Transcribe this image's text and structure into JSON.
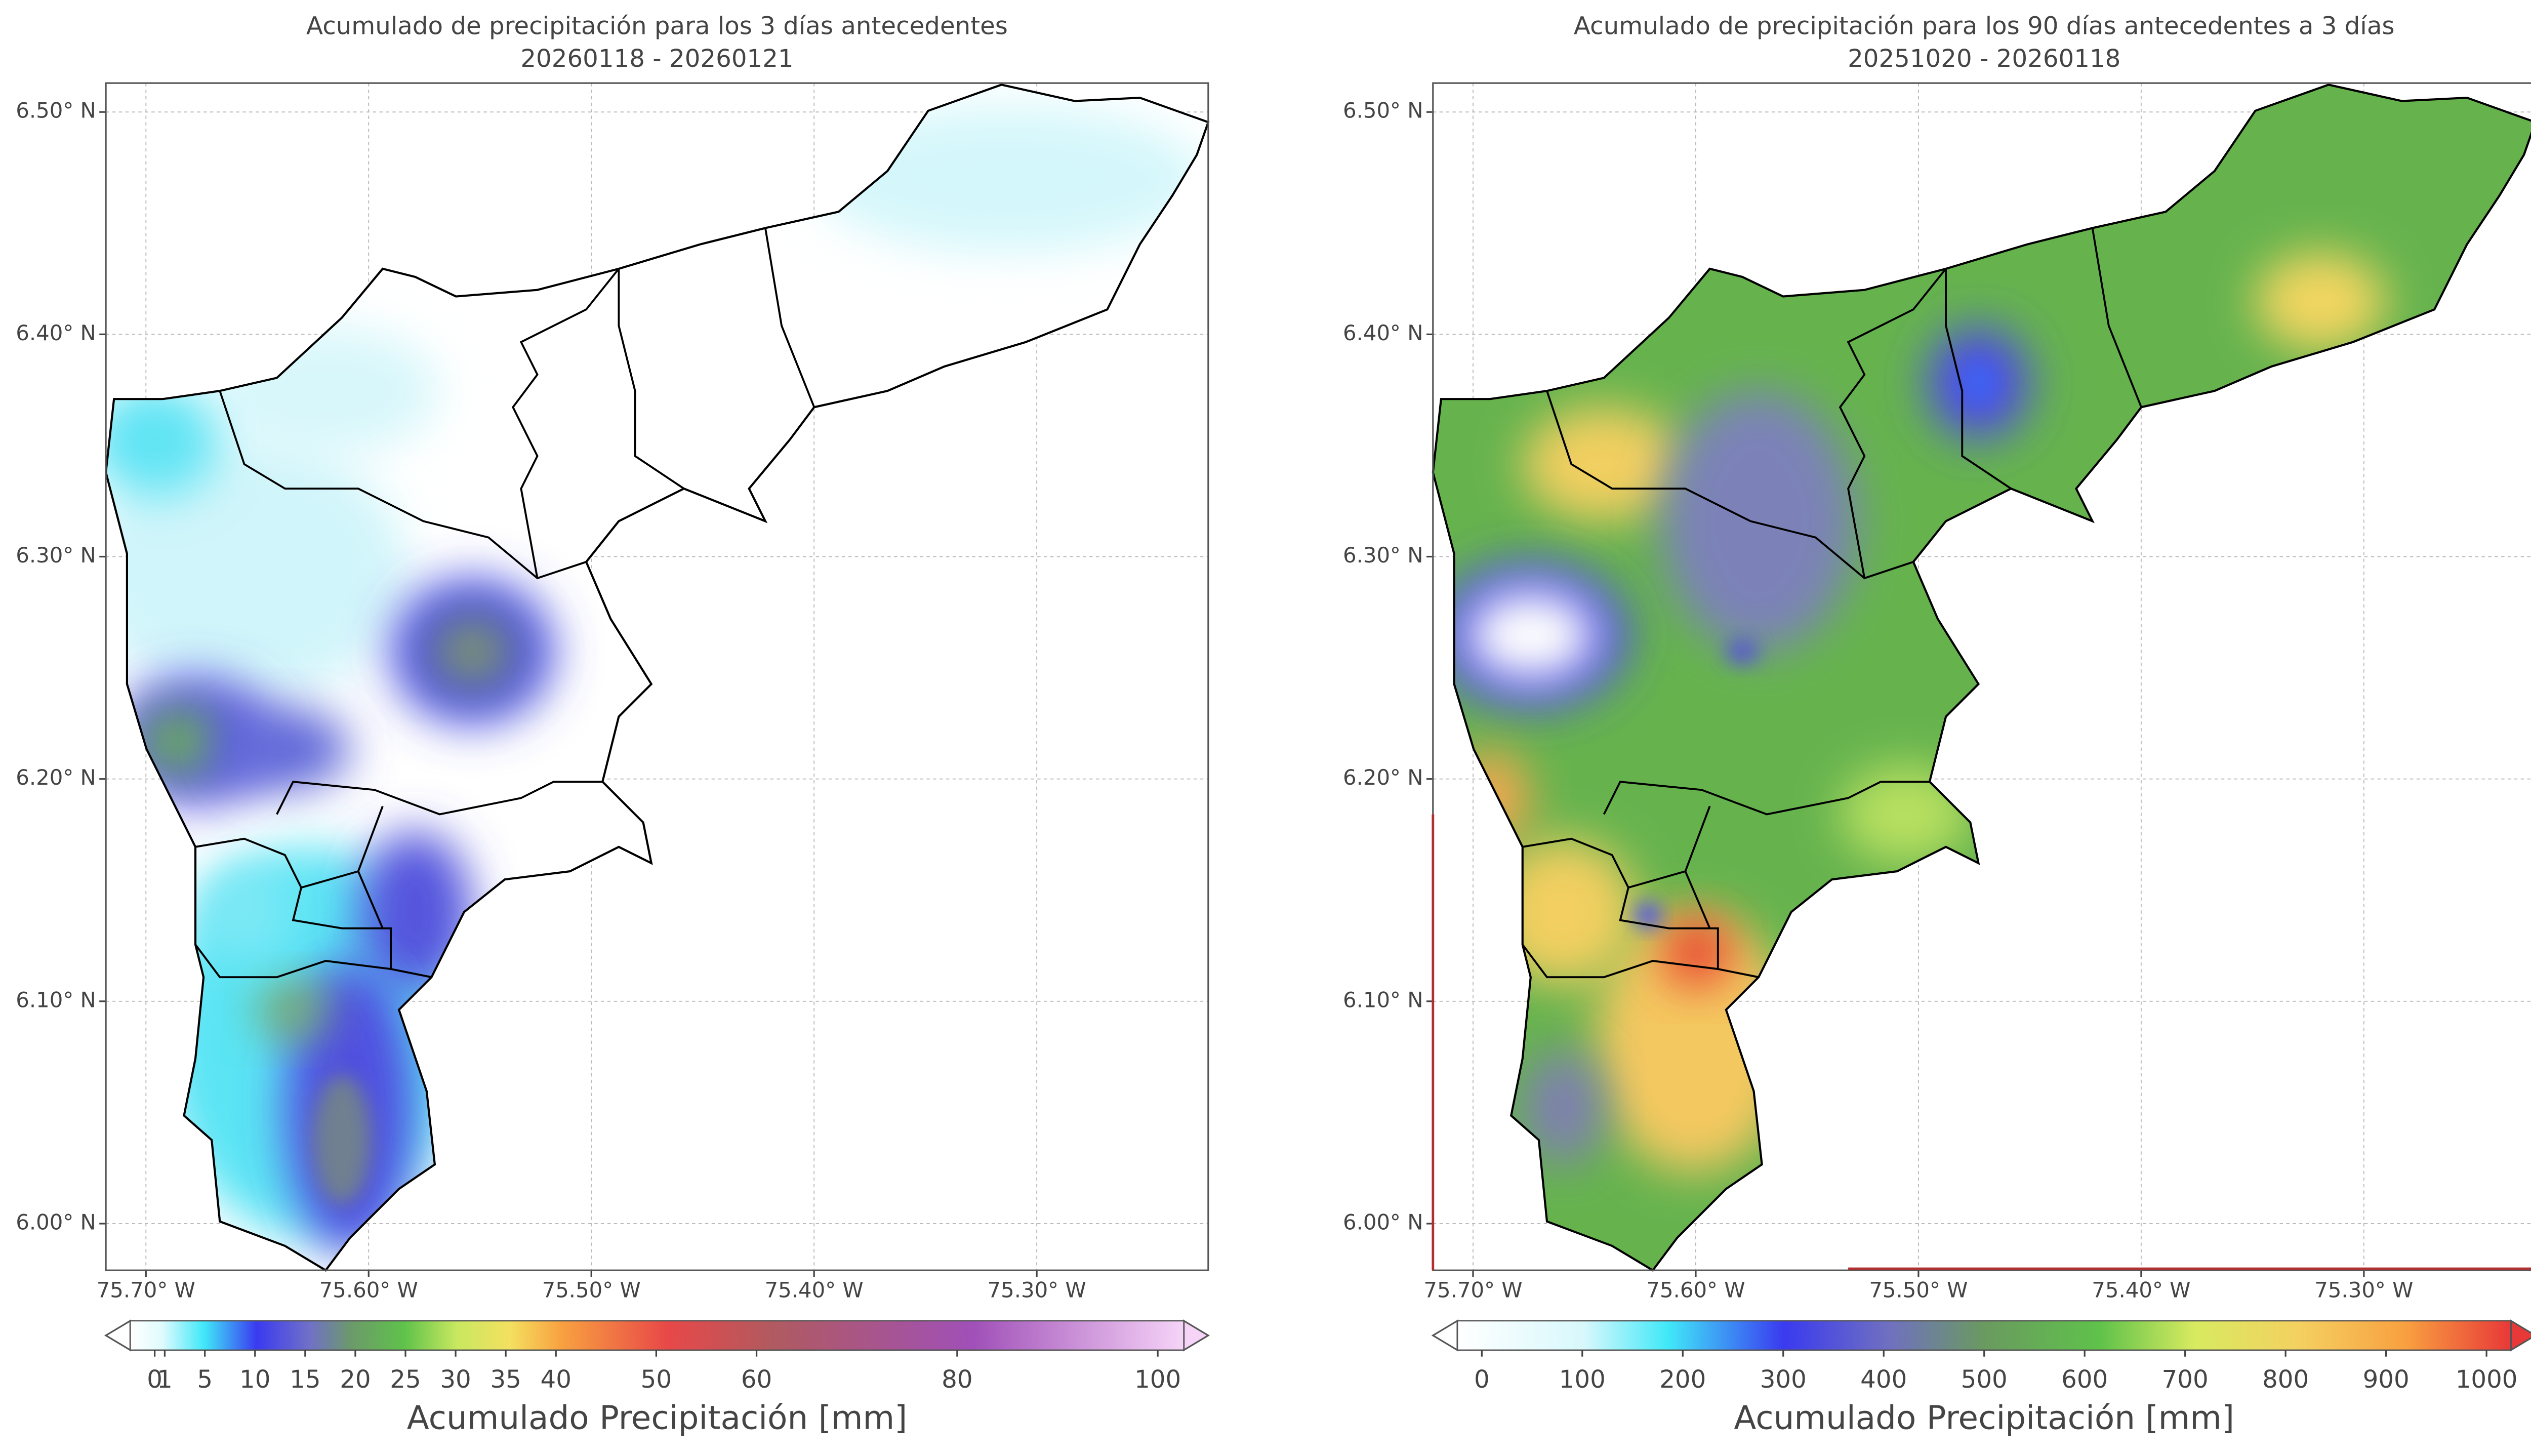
{
  "panels": [
    {
      "title": "Acumulado de precipitación para los 3 días antecedentes",
      "subtitle": "20260118 - 20260121",
      "xlim": [
        -75.718,
        -75.223
      ],
      "ylim": [
        5.979,
        6.513
      ],
      "xticks": [
        {
          "value": -75.7,
          "label": "75.70° W"
        },
        {
          "value": -75.6,
          "label": "75.60° W"
        },
        {
          "value": -75.5,
          "label": "75.50° W"
        },
        {
          "value": -75.4,
          "label": "75.40° W"
        },
        {
          "value": -75.3,
          "label": "75.30° W"
        }
      ],
      "yticks": [
        {
          "value": 6.0,
          "label": "6.00° N"
        },
        {
          "value": 6.1,
          "label": "6.10° N"
        },
        {
          "value": 6.2,
          "label": "6.20° N"
        },
        {
          "value": 6.3,
          "label": "6.30° N"
        },
        {
          "value": 6.4,
          "label": "6.40° N"
        },
        {
          "value": 6.5,
          "label": "6.50° N"
        }
      ],
      "colorbar": {
        "label": "Acumulado Precipitación [mm]",
        "lim": [
          0,
          100
        ],
        "ticks": [
          0,
          1,
          5,
          10,
          15,
          20,
          25,
          30,
          35,
          40,
          50,
          60,
          80,
          100
        ]
      }
    },
    {
      "title": "Acumulado de precipitación para los 90 días antecedentes a 3 días",
      "subtitle": "20251020 - 20260118",
      "xlim": [
        -75.718,
        -75.223
      ],
      "ylim": [
        5.979,
        6.513
      ],
      "xticks": [
        {
          "value": -75.7,
          "label": "75.70° W"
        },
        {
          "value": -75.6,
          "label": "75.60° W"
        },
        {
          "value": -75.5,
          "label": "75.50° W"
        },
        {
          "value": -75.4,
          "label": "75.40° W"
        },
        {
          "value": -75.3,
          "label": "75.30° W"
        }
      ],
      "yticks": [
        {
          "value": 6.0,
          "label": "6.00° N"
        },
        {
          "value": 6.1,
          "label": "6.10° N"
        },
        {
          "value": 6.2,
          "label": "6.20° N"
        },
        {
          "value": 6.3,
          "label": "6.30° N"
        },
        {
          "value": 6.4,
          "label": "6.40° N"
        },
        {
          "value": 6.5,
          "label": "6.50° N"
        }
      ],
      "colorbar": {
        "label": "Acumulado Precipitación [mm]",
        "lim": [
          0,
          1000
        ],
        "ticks": [
          0,
          100,
          200,
          300,
          400,
          500,
          600,
          700,
          800,
          900,
          1000
        ]
      }
    }
  ]
}
